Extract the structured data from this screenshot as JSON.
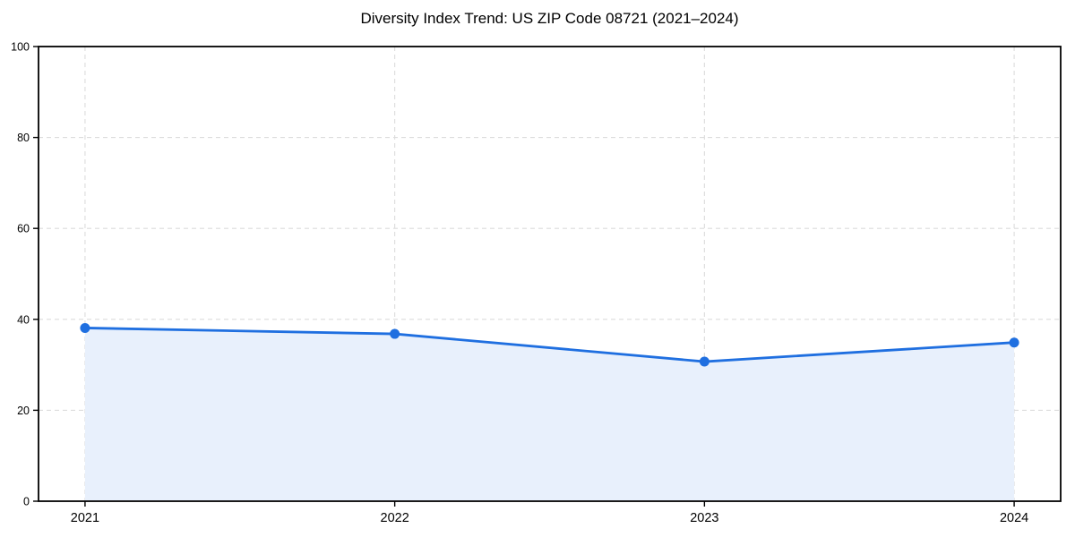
{
  "chart_data": {
    "type": "area",
    "title": "Diversity Index Trend: US ZIP Code 08721 (2021–2024)",
    "xlabel": "",
    "ylabel": "",
    "x": [
      2021,
      2022,
      2023,
      2024
    ],
    "xticks": [
      "2021",
      "2022",
      "2023",
      "2024"
    ],
    "series": [
      {
        "name": "Diversity Index",
        "values": [
          38.1,
          36.8,
          30.7,
          34.9
        ]
      }
    ],
    "ylim": [
      0,
      100
    ],
    "yticks": [
      0,
      20,
      40,
      60,
      80,
      100
    ],
    "grid": "dashed-both-axes",
    "legend": "none",
    "marker": "circle",
    "colors": {
      "line": "#1f6fe0",
      "marker": "#1f6fe0",
      "area_fill": "#e8f0fc",
      "grid": "#dcdcdc",
      "axis": "#000000",
      "text": "#000000",
      "background": "#ffffff"
    }
  }
}
